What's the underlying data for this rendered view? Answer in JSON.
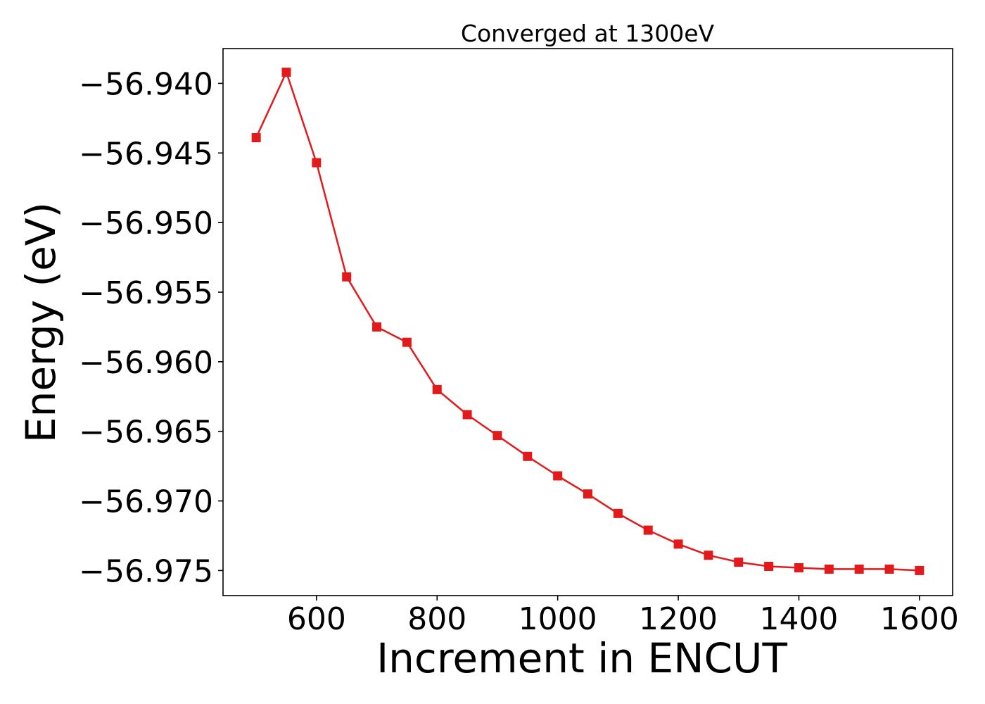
{
  "chart_data": {
    "type": "line",
    "title": "Converged at 1300eV",
    "xlabel": "Increment in ENCUT",
    "ylabel": "Energy (eV)",
    "xlim": [
      445,
      1655
    ],
    "ylim": [
      -56.9768,
      -56.9375
    ],
    "xticks": [
      600,
      800,
      1000,
      1200,
      1400,
      1600
    ],
    "xtick_labels": [
      "600",
      "800",
      "1000",
      "1200",
      "1400",
      "1600"
    ],
    "yticks": [
      -56.94,
      -56.945,
      -56.95,
      -56.955,
      -56.96,
      -56.965,
      -56.97,
      -56.975
    ],
    "ytick_labels": [
      "−56.940",
      "−56.945",
      "−56.950",
      "−56.955",
      "−56.960",
      "−56.965",
      "−56.970",
      "−56.975"
    ],
    "grid": false,
    "series": [
      {
        "color": "#e31a1c",
        "marker": "square",
        "x": [
          500,
          550,
          600,
          650,
          700,
          750,
          800,
          850,
          900,
          950,
          1000,
          1050,
          1100,
          1150,
          1200,
          1250,
          1300,
          1350,
          1400,
          1450,
          1500,
          1550,
          1600
        ],
        "y": [
          -56.9439,
          -56.9392,
          -56.9457,
          -56.9539,
          -56.9575,
          -56.9586,
          -56.962,
          -56.9638,
          -56.9653,
          -56.9668,
          -56.9682,
          -56.9695,
          -56.9709,
          -56.9721,
          -56.9731,
          -56.9739,
          -56.9744,
          -56.9747,
          -56.9748,
          -56.9749,
          -56.9749,
          -56.9749,
          -56.975
        ]
      }
    ]
  }
}
